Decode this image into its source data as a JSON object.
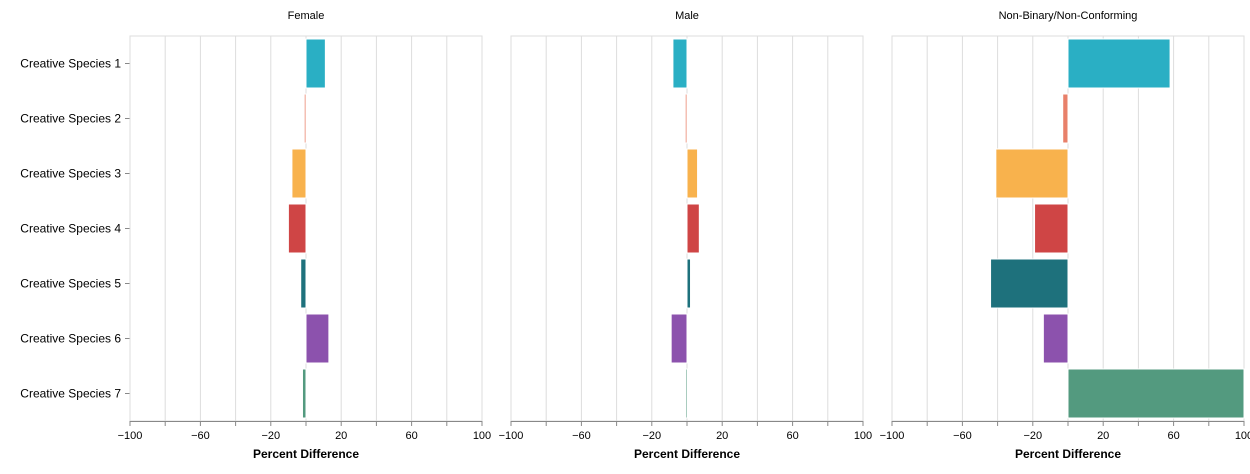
{
  "chart_data": {
    "type": "bar",
    "orientation": "horizontal",
    "categories": [
      "Creative Species 1",
      "Creative Species 2",
      "Creative Species 3",
      "Creative Species 4",
      "Creative Species 5",
      "Creative Species 6",
      "Creative Species 7"
    ],
    "xlabel": "Percent Difference",
    "xlim": [
      -100,
      100
    ],
    "xticks": [
      -100,
      -80,
      -60,
      -40,
      -20,
      0,
      20,
      40,
      60,
      80,
      100
    ],
    "xtick_labels": [
      "−100",
      "",
      "−60",
      "",
      "−20",
      "",
      "20",
      "",
      "60",
      "",
      "100"
    ],
    "grid": true,
    "category_colors": [
      "#2aafc4",
      "#e8806a",
      "#f8b24d",
      "#cf4545",
      "#1e717c",
      "#8c52ad",
      "#539a7f"
    ],
    "panels": [
      {
        "title": "Female",
        "values": [
          11,
          -1,
          -8,
          -10,
          -3,
          13,
          -2
        ]
      },
      {
        "title": "Male",
        "values": [
          -8,
          -1,
          6,
          7,
          2,
          -9,
          -0.5
        ]
      },
      {
        "title": "Non-Binary/Non-Conforming",
        "values": [
          58,
          -3,
          -41,
          -19,
          -44,
          -14,
          100
        ]
      }
    ]
  }
}
